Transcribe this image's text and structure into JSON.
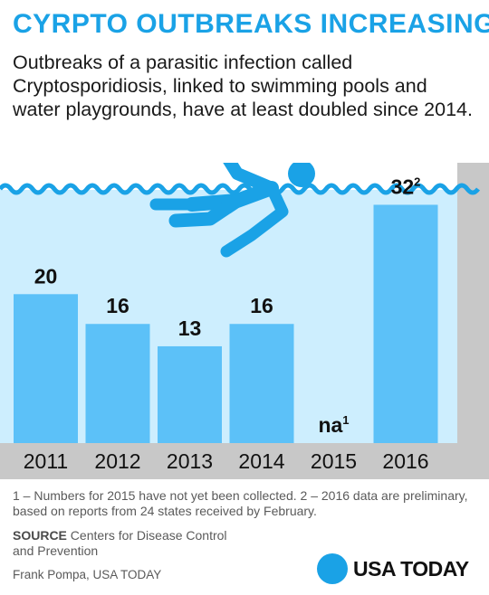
{
  "header": {
    "title": "CYRPTO OUTBREAKS INCREASING",
    "subtitle": "Outbreaks of a parasitic infection called Cryptosporidiosis, linked to swimming pools and water playgrounds, have at least doubled since 2014."
  },
  "chart_data": {
    "type": "bar",
    "categories": [
      "2011",
      "2012",
      "2013",
      "2014",
      "2015",
      "2016"
    ],
    "values": [
      20,
      16,
      13,
      16,
      null,
      32
    ],
    "labels": [
      "20",
      "16",
      "13",
      "16",
      "na",
      "32"
    ],
    "label_superscripts": [
      "",
      "",
      "",
      "",
      "1",
      "2"
    ],
    "ylim": [
      0,
      34
    ],
    "grid": false,
    "legend": "none"
  },
  "footer": {
    "footnote": "1 – Numbers for 2015 have not yet been collected.  2 – 2016 data are preliminary, based on reports from 24 states received by February.",
    "source_label": "SOURCE",
    "source_text": " Centers for Disease Control and Prevention",
    "credit": "Frank Pompa, USA TODAY",
    "logo_text": "USA TODAY"
  },
  "colors": {
    "title": "#1aa2e6",
    "water": "#cdeefe",
    "bar": "#5cc1f8",
    "wave": "#1aa2e6",
    "swimmer": "#1aa2e6",
    "wall": "#c8c8c8"
  },
  "icons": {
    "swimmer": "swimmer-icon",
    "logo": "usa-today-logo"
  }
}
